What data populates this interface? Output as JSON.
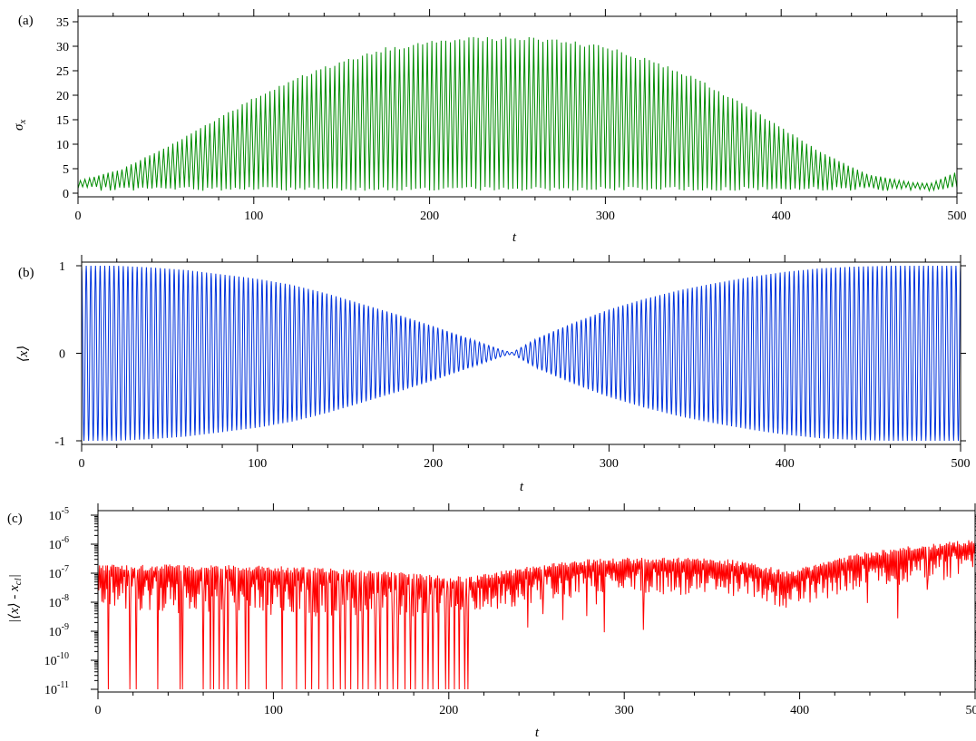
{
  "figure": {
    "panels": [
      {
        "label": "(a)",
        "xlabel": "t",
        "ylabel": "σx"
      },
      {
        "label": "(b)",
        "xlabel": "t",
        "ylabel": "⟨x⟩"
      },
      {
        "label": "(c)",
        "xlabel": "t",
        "ylabel": "|⟨x⟩ - xcl|"
      }
    ]
  },
  "chart_data": [
    {
      "type": "line",
      "panel_label": "(a)",
      "xlabel": "t",
      "ylabel": "σx",
      "xlim": [
        0,
        500
      ],
      "ylim": [
        0,
        35
      ],
      "x_ticks": [
        0,
        100,
        200,
        300,
        400,
        500
      ],
      "y_ticks": [
        0,
        5,
        10,
        15,
        20,
        25,
        30,
        35
      ],
      "color": "#008c00",
      "description_of_signal": "fast oscillation between about 0.5 and an upper envelope",
      "oscillation_periods": 190,
      "lower_envelope": 0.5,
      "upper_envelope": {
        "x": [
          0,
          25,
          50,
          75,
          100,
          125,
          150,
          175,
          200,
          225,
          250,
          275,
          300,
          325,
          350,
          375,
          400,
          425,
          450,
          475,
          485,
          500
        ],
        "y": [
          2.5,
          5,
          9.5,
          14.5,
          19.5,
          23.8,
          27.2,
          29.8,
          31.3,
          32,
          32,
          31.5,
          30,
          27.5,
          24,
          19,
          13.5,
          8,
          3.8,
          2.2,
          2,
          4.5
        ]
      },
      "grid": false
    },
    {
      "type": "line",
      "panel_label": "(b)",
      "xlabel": "t",
      "ylabel": "⟨x⟩",
      "xlim": [
        0,
        500
      ],
      "ylim": [
        -1,
        1
      ],
      "x_ticks": [
        0,
        100,
        200,
        300,
        400,
        500
      ],
      "y_ticks": [
        -1,
        0,
        1
      ],
      "color": "#0033dd",
      "description_of_signal": "fast oscillation symmetric about 0 with envelope shown",
      "oscillation_periods": 190,
      "envelope": {
        "x": [
          0,
          20,
          40,
          60,
          80,
          100,
          120,
          140,
          160,
          180,
          200,
          220,
          240,
          245,
          260,
          280,
          300,
          320,
          340,
          360,
          380,
          400,
          420,
          440,
          460,
          480,
          500
        ],
        "y": [
          1,
          1,
          0.98,
          0.95,
          0.9,
          0.85,
          0.78,
          0.68,
          0.56,
          0.44,
          0.31,
          0.17,
          0.03,
          0.01,
          0.18,
          0.35,
          0.5,
          0.62,
          0.72,
          0.8,
          0.87,
          0.93,
          0.97,
          0.99,
          1,
          1,
          1
        ]
      },
      "grid": false
    },
    {
      "type": "line",
      "panel_label": "(c)",
      "xlabel": "t",
      "ylabel": "|⟨x⟩ - xcl|",
      "xlim": [
        0,
        500
      ],
      "ylim": [
        1e-11,
        1e-05
      ],
      "yscale": "log",
      "x_ticks": [
        0,
        100,
        200,
        300,
        400,
        500
      ],
      "y_ticks": [
        "10^-11",
        "10^-10",
        "10^-9",
        "10^-8",
        "10^-7",
        "10^-6",
        "10^-5"
      ],
      "color": "#ff0000",
      "description_of_signal": "noisy oscillating error; upper envelope below, frequent deep dips to 1e-11 before t≈215",
      "upper_envelope": {
        "x": [
          0,
          50,
          100,
          150,
          200,
          215,
          240,
          270,
          300,
          330,
          360,
          380,
          395,
          420,
          450,
          480,
          500
        ],
        "y": [
          2e-07,
          2e-07,
          1.8e-07,
          1.3e-07,
          8e-08,
          8e-08,
          1.5e-07,
          2.8e-07,
          3.5e-07,
          3.5e-07,
          3e-07,
          1.8e-07,
          1.1e-07,
          3e-07,
          7e-07,
          1.1e-06,
          1.5e-06
        ]
      },
      "deep_dip_times": [
        6,
        18,
        22,
        34,
        47,
        48,
        60,
        64,
        66,
        69,
        72,
        74,
        79,
        84,
        86,
        96,
        105,
        113,
        118,
        122,
        126,
        131,
        134,
        138,
        141,
        144,
        148,
        151,
        154,
        158,
        161,
        165,
        168,
        171,
        175,
        178,
        181,
        185,
        188,
        191,
        194,
        198,
        200,
        203,
        206,
        209,
        211
      ],
      "grid": false
    }
  ]
}
